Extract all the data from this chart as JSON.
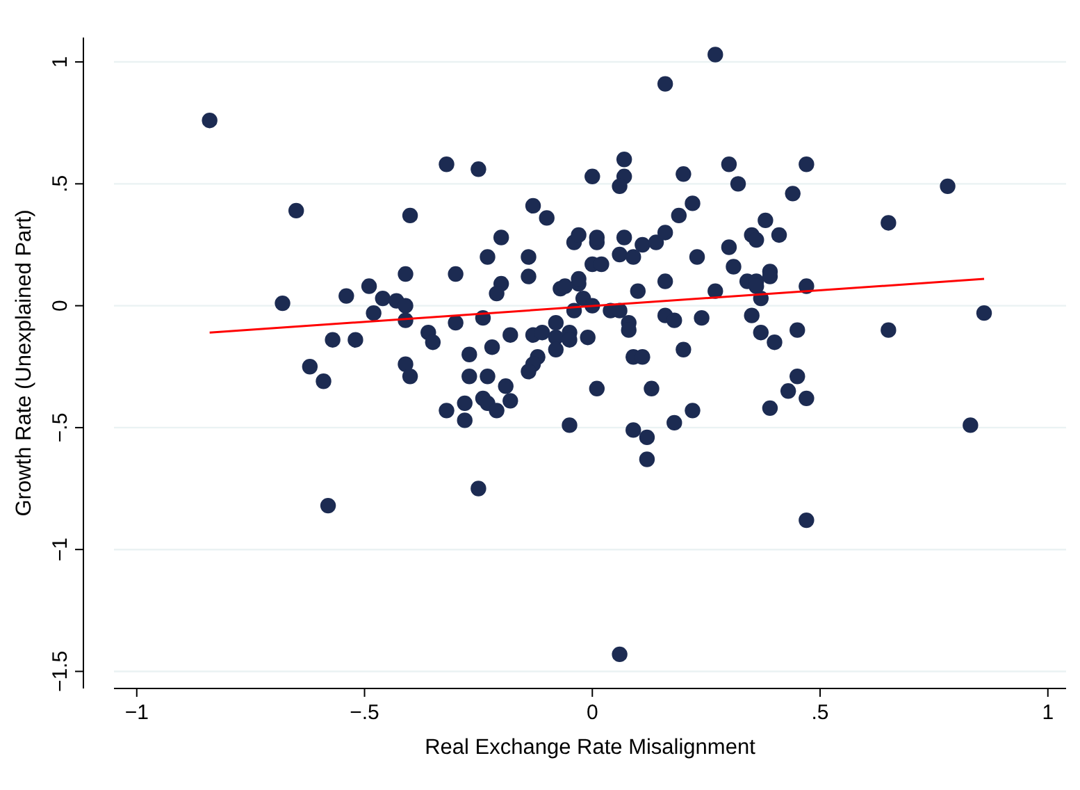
{
  "chart_data": {
    "type": "scatter",
    "xlabel": "Real Exchange Rate Misalignment",
    "ylabel": "Growth Rate (Unexplained Part)",
    "xlim": [
      -1.05,
      1.04
    ],
    "ylim": [
      -1.57,
      1.1
    ],
    "xticks": [
      {
        "value": -1,
        "label": "−1"
      },
      {
        "value": -0.5,
        "label": "−.5"
      },
      0,
      {
        "value": 0.5,
        "label": ".5"
      },
      1
    ],
    "yticks": [
      {
        "value": -1.5,
        "label": "−1.5"
      },
      {
        "value": -1,
        "label": "−1"
      },
      {
        "value": -0.5,
        "label": "−.5"
      },
      0,
      {
        "value": 0.5,
        "label": ".5"
      },
      1
    ],
    "grid": "y",
    "series": [
      {
        "type": "scatter",
        "marker": "circle",
        "color": "#1c2b52",
        "x": [
          -0.84,
          -0.65,
          -0.68,
          -0.57,
          -0.52,
          -0.62,
          -0.59,
          -0.58,
          -0.25,
          -0.41,
          -0.4,
          -0.32,
          -0.28,
          -0.28,
          -0.27,
          -0.27,
          -0.23,
          -0.22,
          -0.19,
          -0.18,
          -0.24,
          -0.23,
          -0.21,
          -0.3,
          -0.24,
          -0.36,
          -0.35,
          -0.41,
          -0.18,
          -0.13,
          -0.11,
          -0.08,
          -0.08,
          -0.05,
          -0.05,
          -0.08,
          -0.12,
          -0.13,
          -0.14,
          -0.05,
          -0.01,
          0.01,
          -0.04,
          -0.02,
          0.0,
          -0.54,
          -0.49,
          -0.46,
          -0.48,
          -0.43,
          -0.41,
          -0.41,
          -0.2,
          -0.21,
          -0.07,
          -0.03,
          -0.03,
          -0.32,
          -0.25,
          -0.4,
          0.0,
          -0.13,
          -0.1,
          -0.2,
          -0.23,
          -0.14,
          -0.04,
          -0.03,
          0.01,
          0.01,
          0.0,
          -0.3,
          -0.14,
          -0.06,
          0.27,
          0.16,
          0.07,
          0.07,
          0.06,
          0.2,
          0.3,
          0.32,
          0.47,
          0.44,
          0.78,
          0.22,
          0.19,
          0.65,
          0.38,
          0.35,
          0.36,
          0.41,
          0.07,
          0.11,
          0.14,
          0.16,
          0.3,
          0.23,
          0.06,
          0.09,
          0.02,
          0.31,
          0.16,
          0.34,
          0.36,
          0.39,
          0.39,
          0.36,
          0.47,
          0.1,
          0.27,
          0.37,
          0.86,
          0.65,
          0.04,
          0.06,
          0.16,
          0.18,
          0.08,
          0.08,
          0.24,
          0.35,
          0.37,
          0.4,
          0.45,
          0.2,
          0.09,
          0.11,
          0.13,
          0.45,
          0.43,
          0.47,
          0.39,
          0.22,
          0.18,
          0.09,
          0.12,
          0.12,
          0.83,
          0.47,
          0.06
        ],
        "values": [
          0.76,
          0.39,
          0.01,
          -0.14,
          -0.14,
          -0.25,
          -0.31,
          -0.82,
          -0.75,
          -0.24,
          -0.29,
          -0.43,
          -0.4,
          -0.47,
          -0.29,
          -0.2,
          -0.29,
          -0.17,
          -0.33,
          -0.39,
          -0.38,
          -0.4,
          -0.43,
          -0.07,
          -0.05,
          -0.11,
          -0.15,
          -0.06,
          -0.12,
          -0.12,
          -0.11,
          -0.07,
          -0.13,
          -0.11,
          -0.14,
          -0.18,
          -0.21,
          -0.24,
          -0.27,
          -0.49,
          -0.13,
          -0.34,
          -0.02,
          0.03,
          0.0,
          0.04,
          0.08,
          0.03,
          -0.03,
          0.02,
          0.0,
          0.13,
          0.09,
          0.05,
          0.07,
          0.09,
          0.11,
          0.58,
          0.56,
          0.37,
          0.53,
          0.41,
          0.36,
          0.28,
          0.2,
          0.2,
          0.26,
          0.29,
          0.26,
          0.28,
          0.17,
          0.13,
          0.12,
          0.08,
          1.03,
          0.91,
          0.6,
          0.53,
          0.49,
          0.54,
          0.58,
          0.5,
          0.58,
          0.46,
          0.49,
          0.42,
          0.37,
          0.34,
          0.35,
          0.29,
          0.27,
          0.29,
          0.28,
          0.25,
          0.26,
          0.3,
          0.24,
          0.2,
          0.21,
          0.2,
          0.17,
          0.16,
          0.1,
          0.1,
          0.1,
          0.14,
          0.12,
          0.08,
          0.08,
          0.06,
          0.06,
          0.03,
          -0.03,
          -0.1,
          -0.02,
          -0.02,
          -0.04,
          -0.06,
          -0.07,
          -0.1,
          -0.05,
          -0.04,
          -0.11,
          -0.15,
          -0.1,
          -0.18,
          -0.21,
          -0.21,
          -0.34,
          -0.29,
          -0.35,
          -0.38,
          -0.42,
          -0.43,
          -0.48,
          -0.51,
          -0.54,
          -0.63,
          -0.49,
          -0.88,
          -1.43
        ]
      },
      {
        "type": "line",
        "color": "#ff0000",
        "x": [
          -0.84,
          0.86
        ],
        "values": [
          -0.11,
          0.11
        ]
      }
    ]
  }
}
